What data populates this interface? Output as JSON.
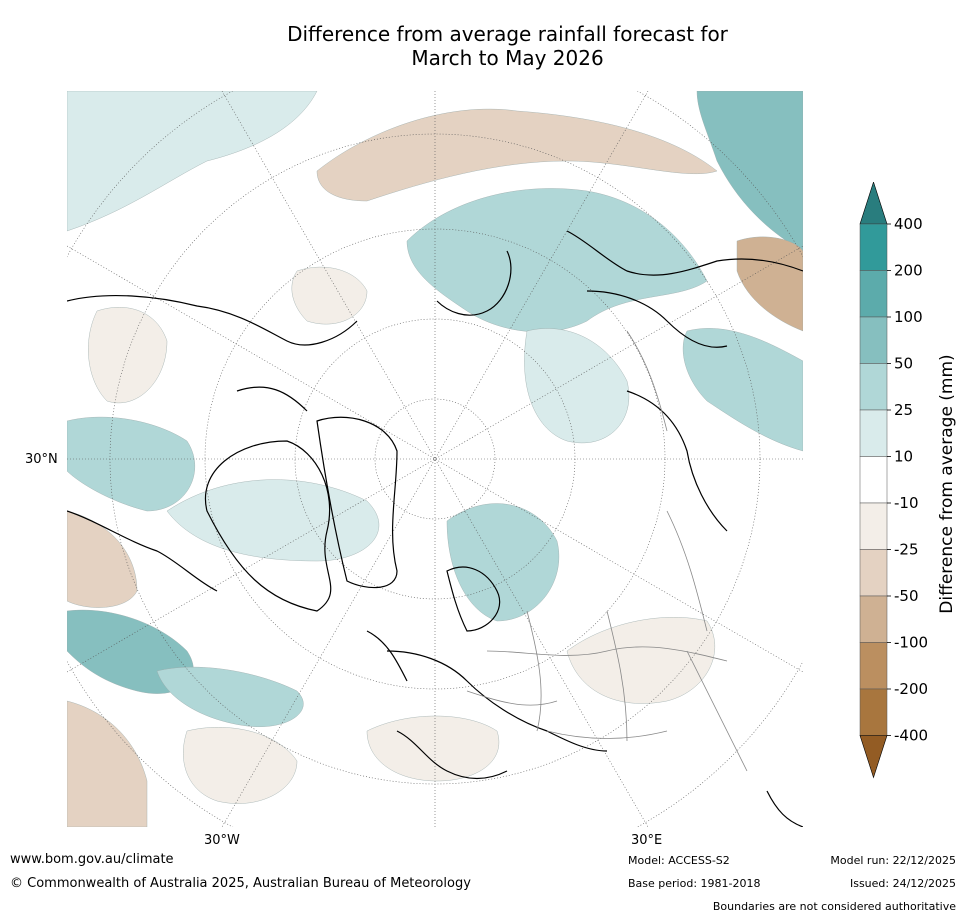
{
  "title_line1": "Difference from average rainfall forecast for",
  "title_line2": "March to May 2026",
  "axis_labels": {
    "lat": "30°N",
    "lon_west": "30°W",
    "lon_east": "30°E"
  },
  "legend": {
    "title": "Difference from average (mm)",
    "labels": [
      "400",
      "200",
      "100",
      "50",
      "25",
      "10",
      "-10",
      "-25",
      "-50",
      "-100",
      "-200",
      "-400"
    ],
    "colors": [
      "#297d7e",
      "#319a9a",
      "#5cabab",
      "#86bfbf",
      "#b0d7d7",
      "#d9ebeb",
      "#ffffff",
      "#f3eee8",
      "#e4d2c2",
      "#cfb193",
      "#bb8f60",
      "#a8763e",
      "#935c24"
    ]
  },
  "map_colors": {
    "wet1": "#d9ebeb",
    "wet2": "#b0d7d7",
    "wet3": "#86bfbf",
    "wet4": "#5cabab",
    "dry1": "#f3eee8",
    "dry2": "#e4d2c2",
    "dry3": "#cfb193"
  },
  "footer": {
    "url": "www.bom.gov.au/climate",
    "copyright": "© Commonwealth of Australia 2025, Australian Bureau of Meteorology",
    "model": "Model: ACCESS-S2",
    "base_period": "Base period: 1981-2018",
    "model_run": "Model run: 22/12/2025",
    "issued": "Issued: 24/12/2025",
    "disclaimer": "Boundaries are not considered authoritative"
  }
}
